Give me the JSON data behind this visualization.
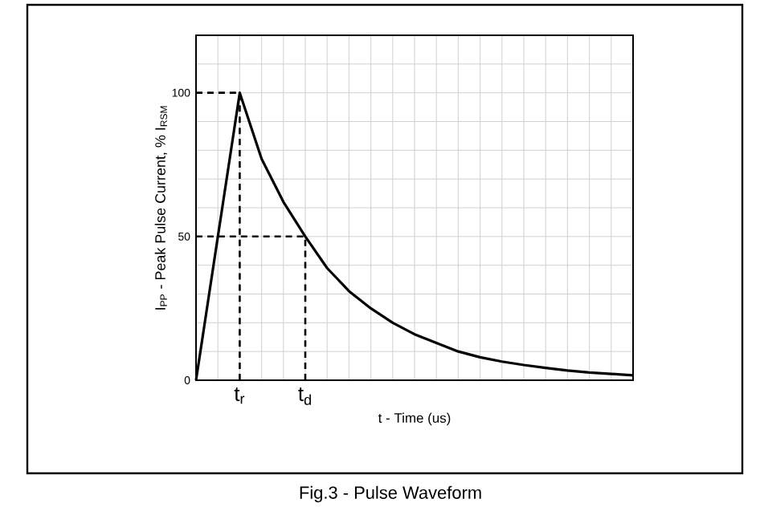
{
  "chart_data": {
    "type": "line",
    "title": "Fig.3 - Pulse Waveform",
    "xlabel": "t - Time (us)",
    "ylabel": "I$_{PP}$ - Peak Pulse Current, % I$_{RSM}$",
    "categories": [
      null,
      null,
      "t$_{r}$",
      null,
      null,
      "t$_{d}$",
      null,
      null,
      null,
      null,
      null,
      null,
      null,
      null,
      null,
      null,
      null,
      null,
      null,
      null,
      null
    ],
    "values": [
      0,
      50,
      100,
      77,
      62,
      50,
      39,
      31,
      25,
      20,
      16,
      13,
      10,
      8,
      6.5,
      5.3,
      4.3,
      3.4,
      2.7,
      2.2,
      1.7
    ],
    "color": "#000000",
    "marker": "none",
    "line_style": "solid",
    "ylim": [
      0,
      120
    ],
    "yticks": [
      0,
      {
        "value": 10,
        "label": null
      },
      {
        "value": 20,
        "label": null
      },
      {
        "value": 30,
        "label": null
      },
      {
        "value": 40,
        "label": null
      },
      50,
      {
        "value": 60,
        "label": null
      },
      {
        "value": 70,
        "label": null
      },
      {
        "value": 80,
        "label": null
      },
      {
        "value": 90,
        "label": null
      },
      100,
      {
        "value": 110,
        "label": null
      },
      {
        "value": 120,
        "label": null
      }
    ],
    "grid": true,
    "ref_lines": [
      {
        "axis": "y",
        "value": 100,
        "line_style": "dashed",
        "color": "#000000"
      },
      {
        "axis": "x",
        "value": "t$_{r}$",
        "line_style": "dashed",
        "color": "#000000"
      },
      {
        "axis": "y",
        "value": 50,
        "line_style": "dashed",
        "color": "#000000"
      },
      {
        "axis": "x",
        "value": "t$_{d}$",
        "line_style": "dashed",
        "color": "#000000"
      }
    ]
  }
}
